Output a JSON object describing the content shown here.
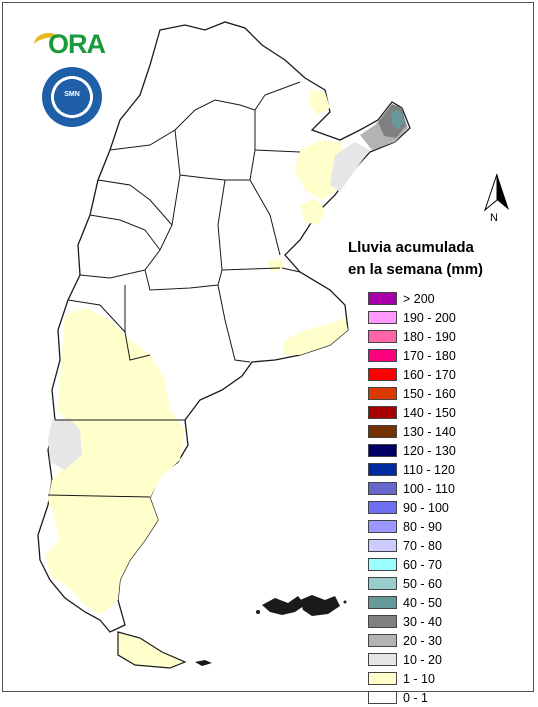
{
  "logos": {
    "ora_text": "ORA",
    "smn_text": "SMN"
  },
  "north_arrow": {
    "label": "N"
  },
  "legend": {
    "title_line1": "Lluvia acumulada",
    "title_line2": "en la semana (mm)",
    "items": [
      {
        "label": "> 200",
        "color": "#a800a8"
      },
      {
        "label": "190 - 200",
        "color": "#ff99ff"
      },
      {
        "label": "180 - 190",
        "color": "#ff66a8"
      },
      {
        "label": "170 - 180",
        "color": "#ff0080"
      },
      {
        "label": "160 - 170",
        "color": "#ff0000"
      },
      {
        "label": "150 - 160",
        "color": "#d93b00"
      },
      {
        "label": "140 - 150",
        "color": "#a80000"
      },
      {
        "label": "130 - 140",
        "color": "#733000"
      },
      {
        "label": "120 - 130",
        "color": "#000066"
      },
      {
        "label": "110 - 120",
        "color": "#002a9e"
      },
      {
        "label": "100 - 110",
        "color": "#6666cc"
      },
      {
        "label": "90 - 100",
        "color": "#6f6ff2"
      },
      {
        "label": "80 - 90",
        "color": "#9999ff"
      },
      {
        "label": "70 - 80",
        "color": "#ccccff"
      },
      {
        "label": "60 - 70",
        "color": "#99ffff"
      },
      {
        "label": "50 - 60",
        "color": "#99cccc"
      },
      {
        "label": "40 - 50",
        "color": "#669999"
      },
      {
        "label": "30 - 40",
        "color": "#808080"
      },
      {
        "label": "20 - 30",
        "color": "#b3b3b3"
      },
      {
        "label": "10 - 20",
        "color": "#e6e6e6"
      },
      {
        "label": "1 - 10",
        "color": "#ffffcc"
      },
      {
        "label": "0 - 1",
        "color": "#ffffff"
      }
    ]
  }
}
